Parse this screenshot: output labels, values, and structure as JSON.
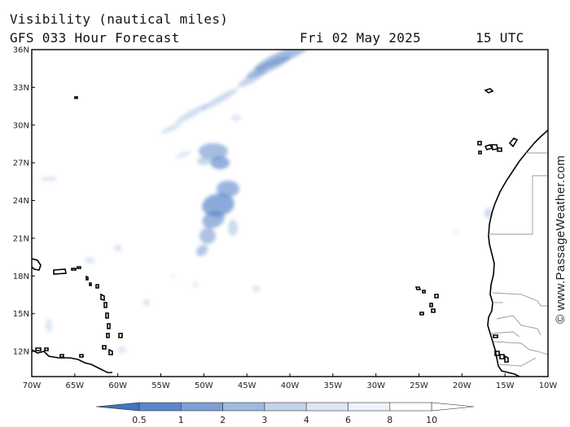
{
  "header": {
    "line1": "Visibility (nautical miles)",
    "model_run": "GFS 033 Hour Forecast",
    "valid_date": "Fri 02 May 2025",
    "valid_time": "15 UTC"
  },
  "map": {
    "lat_labels": [
      "36N",
      "33N",
      "30N",
      "27N",
      "24N",
      "21N",
      "18N",
      "15N",
      "12N"
    ],
    "lon_labels": [
      "70W",
      "65W",
      "60W",
      "55W",
      "50W",
      "45W",
      "40W",
      "35W",
      "30W",
      "25W",
      "20W",
      "15W",
      "10W"
    ],
    "lat_range": [
      10,
      36
    ],
    "lon_range": [
      -70,
      -10
    ],
    "fill_color": "#5b86c9",
    "coast_color": "#000000",
    "border_color": "#999999"
  },
  "colorbar": {
    "labels": [
      "0.5",
      "1",
      "2",
      "3",
      "4",
      "6",
      "8",
      "10"
    ],
    "colors": [
      "#3f74bf",
      "#5b86c9",
      "#7e9fd5",
      "#a0b9e0",
      "#c2d3ec",
      "#dde6f5",
      "#eef3fb",
      "#ffffff"
    ]
  },
  "watermark": "© www.PassageWeather.com"
}
